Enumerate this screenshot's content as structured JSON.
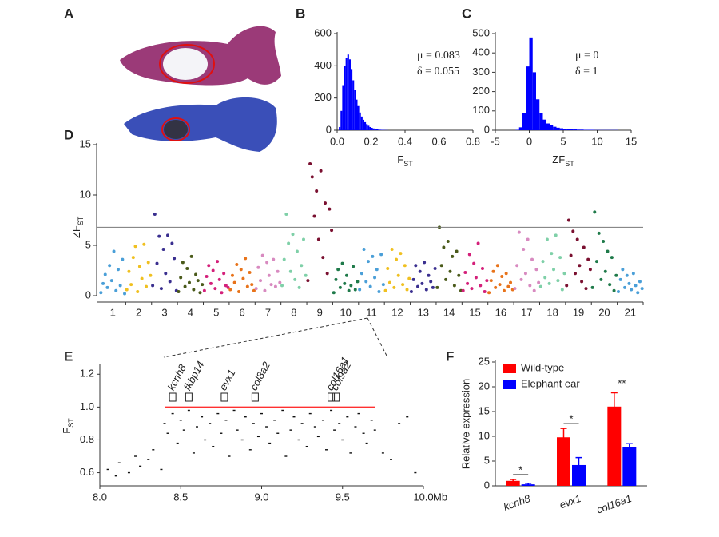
{
  "panel_a": {
    "panel": "A"
  },
  "chart_data": [
    {
      "type": "histogram",
      "panel": "B",
      "xlabel": {
        "main": "F",
        "sub": "ST"
      },
      "annotations": [
        "μ = 0.083",
        "δ = 0.055"
      ],
      "color": "#0000ff",
      "bins": [
        0,
        0.01,
        0.02,
        0.03,
        0.04,
        0.05,
        0.06,
        0.07,
        0.08,
        0.09,
        0.1,
        0.11,
        0.12,
        0.13,
        0.14,
        0.15,
        0.16,
        0.17,
        0.18,
        0.19,
        0.2,
        0.21,
        0.22,
        0.23,
        0.24,
        0.25,
        0.26,
        0.27,
        0.28,
        0.29,
        0.3
      ],
      "counts": [
        0,
        20,
        120,
        280,
        400,
        450,
        470,
        440,
        380,
        310,
        250,
        190,
        150,
        110,
        85,
        65,
        50,
        38,
        28,
        20,
        15,
        11,
        8,
        6,
        4,
        3,
        2,
        2,
        1,
        1
      ],
      "xlim": [
        0,
        0.8
      ],
      "xticks": [
        {
          "value": 0,
          "label": "0.0"
        },
        0.2,
        0.4,
        0.6,
        0.8
      ],
      "ylim": [
        0,
        600
      ],
      "yticks": [
        0,
        200,
        400,
        600
      ]
    },
    {
      "type": "histogram",
      "panel": "C",
      "xlabel": {
        "main": "ZF",
        "sub": "ST"
      },
      "annotations": [
        "μ = 0",
        "δ = 1"
      ],
      "color": "#0000ff",
      "bins": [
        -2,
        -1.5,
        -1,
        -0.5,
        0,
        0.5,
        1,
        1.5,
        2,
        2.5,
        3,
        3.5,
        4,
        4.5,
        5,
        5.5,
        6,
        6.5,
        7,
        7.5,
        8,
        8.5,
        9,
        9.5,
        10,
        10.5,
        11,
        11.5,
        12,
        12.5,
        13
      ],
      "counts": [
        2,
        15,
        90,
        330,
        480,
        300,
        160,
        90,
        55,
        35,
        25,
        18,
        13,
        10,
        8,
        6,
        5,
        4,
        3,
        3,
        2,
        2,
        2,
        1,
        1,
        1,
        1,
        1,
        1,
        1
      ],
      "xlim": [
        -5,
        15
      ],
      "xticks": [
        -5,
        0,
        5,
        10,
        15
      ],
      "ylim": [
        0,
        500
      ],
      "yticks": [
        0,
        100,
        200,
        300,
        400,
        500
      ]
    },
    {
      "type": "manhattan",
      "panel": "D",
      "ylabel": {
        "main": "ZF",
        "sub": "ST"
      },
      "threshold": 6.8,
      "ylim": [
        0,
        15
      ],
      "yticks": [
        0,
        5,
        10,
        15
      ],
      "groups": [
        {
          "label": "1",
          "color": "#4a9fd8",
          "values": [
            0.3,
            1.2,
            2.1,
            0.8,
            3.0,
            1.5,
            4.4,
            0.5,
            2.6,
            1.0,
            3.6,
            0.2
          ]
        },
        {
          "label": "2",
          "color": "#f0c020",
          "values": [
            0.6,
            2.4,
            1.1,
            3.8,
            4.9,
            0.4,
            2.9,
            1.7,
            5.1,
            0.9,
            3.3,
            2.0
          ]
        },
        {
          "label": "3",
          "color": "#3a2f8f",
          "values": [
            1.0,
            8.1,
            3.2,
            5.9,
            0.7,
            4.6,
            2.2,
            6.0,
            1.4,
            5.2,
            3.7,
            0.5
          ]
        },
        {
          "label": "4",
          "color": "#4a5a1a",
          "values": [
            0.4,
            1.8,
            3.3,
            0.9,
            2.7,
            1.3,
            3.9,
            0.6,
            2.1,
            1.5,
            0.3,
            1.1
          ]
        },
        {
          "label": "5",
          "color": "#d4207a",
          "values": [
            0.5,
            1.9,
            3.0,
            1.2,
            2.5,
            0.7,
            3.4,
            1.6,
            0.3,
            2.2,
            1.0,
            0.8
          ]
        },
        {
          "label": "6",
          "color": "#e8731a",
          "values": [
            0.6,
            2.0,
            1.3,
            3.1,
            0.4,
            2.6,
            1.7,
            3.7,
            0.9,
            2.3,
            1.1,
            0.5
          ]
        },
        {
          "label": "7",
          "color": "#d88ac0",
          "values": [
            0.7,
            2.8,
            1.5,
            4.0,
            0.5,
            3.3,
            2.0,
            1.1,
            3.6,
            0.9,
            2.4,
            1.3
          ]
        },
        {
          "label": "8",
          "color": "#7fd0a8",
          "values": [
            1.0,
            3.6,
            8.1,
            5.2,
            2.4,
            6.1,
            1.6,
            4.4,
            0.8,
            3.0,
            5.6,
            2.0
          ]
        },
        {
          "label": "9",
          "color": "#7a1030",
          "values": [
            1.5,
            13.1,
            11.8,
            7.9,
            10.4,
            5.6,
            12.4,
            3.8,
            9.2,
            2.2,
            8.6,
            6.5
          ]
        },
        {
          "label": "10",
          "color": "#1f7a4a",
          "values": [
            0.3,
            1.6,
            2.6,
            0.8,
            3.2,
            1.2,
            2.0,
            0.5,
            1.0,
            2.9,
            0.6,
            1.4
          ]
        },
        {
          "label": "11",
          "color": "#4a9fd8",
          "values": [
            0.6,
            2.2,
            4.6,
            1.4,
            3.4,
            0.9,
            3.9,
            1.8,
            2.6,
            0.4,
            4.1,
            1.1
          ]
        },
        {
          "label": "12",
          "color": "#f0c020",
          "values": [
            0.5,
            2.7,
            1.3,
            4.6,
            0.8,
            3.6,
            2.0,
            4.2,
            1.1,
            3.0,
            0.6,
            1.7
          ]
        },
        {
          "label": "13",
          "color": "#3a2f8f",
          "values": [
            0.4,
            1.6,
            3.0,
            0.9,
            2.4,
            1.2,
            3.3,
            0.6,
            2.0,
            1.4,
            0.8,
            2.7
          ]
        },
        {
          "label": "14",
          "color": "#4a5a1a",
          "values": [
            0.8,
            6.8,
            3.0,
            4.8,
            1.6,
            5.4,
            2.4,
            3.9,
            1.0,
            4.4,
            2.0,
            0.5
          ]
        },
        {
          "label": "15",
          "color": "#d4207a",
          "values": [
            0.5,
            2.3,
            1.2,
            4.1,
            0.7,
            3.2,
            1.8,
            5.2,
            1.0,
            2.7,
            0.4,
            1.5
          ]
        },
        {
          "label": "16",
          "color": "#e8731a",
          "values": [
            0.3,
            1.5,
            2.4,
            0.8,
            3.0,
            1.1,
            1.9,
            0.5,
            2.2,
            0.9,
            1.3,
            0.6
          ]
        },
        {
          "label": "17",
          "color": "#d88ac0",
          "values": [
            0.7,
            3.0,
            6.3,
            1.6,
            4.6,
            2.2,
            5.6,
            1.0,
            3.6,
            0.5,
            2.6,
            1.3
          ]
        },
        {
          "label": "18",
          "color": "#7fd0a8",
          "values": [
            0.9,
            3.4,
            1.8,
            5.6,
            1.2,
            4.2,
            2.6,
            6.0,
            1.5,
            3.8,
            0.6,
            2.2
          ]
        },
        {
          "label": "19",
          "color": "#7a1030",
          "values": [
            1.0,
            7.5,
            4.0,
            6.4,
            2.2,
            5.6,
            3.0,
            1.4,
            4.8,
            0.7,
            3.6,
            2.6
          ]
        },
        {
          "label": "20",
          "color": "#1f7a4a",
          "values": [
            0.8,
            8.3,
            3.4,
            6.2,
            1.6,
            5.4,
            2.4,
            4.4,
            1.1,
            3.8,
            0.5,
            2.0
          ]
        },
        {
          "label": "21",
          "color": "#4a9fd8",
          "values": [
            0.4,
            1.6,
            2.6,
            0.8,
            2.0,
            1.2,
            0.6,
            2.2,
            1.0,
            0.3,
            1.4,
            0.7
          ]
        }
      ]
    },
    {
      "type": "scatter",
      "panel": "E",
      "ylabel": {
        "main": "F",
        "sub": "ST"
      },
      "xunit": "Mb",
      "color": "#111111",
      "x": [
        8.05,
        8.1,
        8.12,
        8.18,
        8.22,
        8.25,
        8.3,
        8.33,
        8.38,
        8.4,
        8.42,
        8.45,
        8.48,
        8.5,
        8.52,
        8.55,
        8.58,
        8.6,
        8.63,
        8.65,
        8.68,
        8.7,
        8.73,
        8.75,
        8.78,
        8.8,
        8.83,
        8.85,
        8.88,
        8.9,
        8.93,
        8.95,
        8.98,
        9.0,
        9.03,
        9.05,
        9.08,
        9.1,
        9.13,
        9.15,
        9.18,
        9.2,
        9.23,
        9.25,
        9.28,
        9.3,
        9.33,
        9.35,
        9.38,
        9.4,
        9.43,
        9.45,
        9.48,
        9.5,
        9.53,
        9.55,
        9.58,
        9.6,
        9.63,
        9.65,
        9.68,
        9.7,
        9.75,
        9.8,
        9.85,
        9.9,
        9.95
      ],
      "y": [
        0.62,
        0.58,
        0.66,
        0.6,
        0.7,
        0.64,
        0.68,
        0.74,
        0.62,
        0.9,
        0.84,
        0.96,
        0.78,
        0.92,
        0.86,
        0.98,
        0.72,
        0.88,
        0.94,
        0.8,
        0.9,
        0.76,
        0.96,
        0.84,
        0.92,
        0.7,
        0.98,
        0.86,
        0.8,
        0.94,
        0.74,
        0.9,
        0.82,
        0.96,
        0.88,
        0.78,
        0.92,
        0.84,
        0.98,
        0.7,
        0.86,
        0.94,
        0.8,
        0.9,
        0.76,
        0.96,
        0.88,
        0.82,
        0.92,
        0.74,
        0.98,
        0.86,
        0.9,
        0.8,
        0.94,
        0.72,
        0.88,
        0.96,
        0.84,
        0.78,
        0.92,
        0.86,
        0.72,
        0.68,
        0.9,
        0.94,
        0.6
      ],
      "highlight": {
        "x": [
          8.4,
          9.7
        ],
        "y": 1.0,
        "color": "#ff3030"
      },
      "genes": [
        {
          "name": "kcnh8",
          "x": 8.45
        },
        {
          "name": "fkbp14",
          "x": 8.55
        },
        {
          "name": "evx1",
          "x": 8.77
        },
        {
          "name": "col8a2",
          "x": 8.96
        },
        {
          "name": "col16a1",
          "x": 9.43
        },
        {
          "name": "col9a2",
          "x": 9.46
        }
      ],
      "xlim": [
        8.0,
        10.0
      ],
      "xticks": [
        {
          "value": 8,
          "label": "8.0"
        },
        8.5,
        {
          "value": 9,
          "label": "9.0"
        },
        9.5,
        {
          "value": 10,
          "label": "10.0"
        }
      ],
      "ylim": [
        0.52,
        1.25
      ],
      "yticks": [
        0.6,
        0.8,
        {
          "value": 1,
          "label": "1.0"
        },
        1.2
      ]
    },
    {
      "type": "bar",
      "panel": "F",
      "ylabel": "Relative expression",
      "categories": [
        "kcnh8",
        "evx1",
        "col16a1"
      ],
      "series": [
        {
          "name": "Wild-type",
          "color": "#ff0000",
          "values": [
            1.0,
            9.8,
            16
          ],
          "errors": [
            0.3,
            1.8,
            2.8
          ]
        },
        {
          "name": "Elephant ear",
          "color": "#0000ff",
          "values": [
            0.3,
            4.2,
            7.8
          ],
          "errors": [
            0.2,
            1.5,
            0.7
          ]
        }
      ],
      "significance": [
        "*",
        "*",
        "**"
      ],
      "ylim": [
        0,
        25
      ],
      "yticks": [
        0,
        5,
        10,
        15,
        20,
        25
      ]
    }
  ]
}
